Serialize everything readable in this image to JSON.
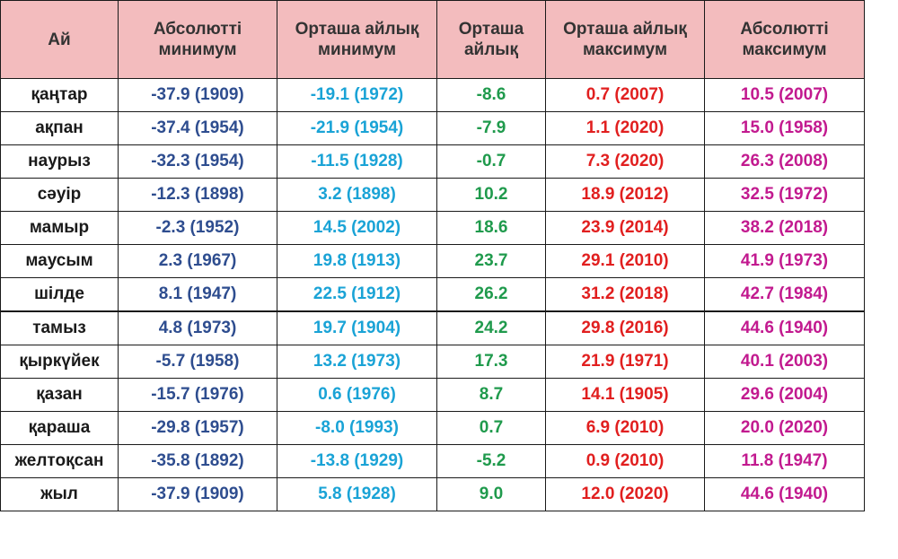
{
  "colors": {
    "header_bg": "#f3bcbe",
    "abs_min": "#2e4d8f",
    "avg_min": "#1aa3d6",
    "avg": "#1f9a4c",
    "avg_max": "#e11f1f",
    "abs_max": "#c21a8f"
  },
  "headers": {
    "month": "Ай",
    "abs_min_1": "Абсолютті",
    "abs_min_2": "минимум",
    "avg_min_1": "Орташа айлық",
    "avg_min_2": "минимум",
    "avg_1": "Орташа",
    "avg_2": "айлық",
    "avg_max_1": "Орташа айлық",
    "avg_max_2": "максимум",
    "abs_max_1": "Абсолютті",
    "abs_max_2": "максимум"
  },
  "rows": [
    {
      "month": "қаңтар",
      "abs_min": "-37.9 (1909)",
      "avg_min": "-19.1 (1972)",
      "avg": "-8.6",
      "avg_max": "0.7 (2007)",
      "abs_max": "10.5 (2007)"
    },
    {
      "month": "ақпан",
      "abs_min": "-37.4 (1954)",
      "avg_min": "-21.9 (1954)",
      "avg": "-7.9",
      "avg_max": "1.1 (2020)",
      "abs_max": "15.0 (1958)"
    },
    {
      "month": "наурыз",
      "abs_min": "-32.3 (1954)",
      "avg_min": "-11.5 (1928)",
      "avg": "-0.7",
      "avg_max": "7.3 (2020)",
      "abs_max": "26.3 (2008)"
    },
    {
      "month": "сәуір",
      "abs_min": "-12.3 (1898)",
      "avg_min": "3.2 (1898)",
      "avg": "10.2",
      "avg_max": "18.9 (2012)",
      "abs_max": "32.5 (1972)"
    },
    {
      "month": "мамыр",
      "abs_min": "-2.3 (1952)",
      "avg_min": "14.5 (2002)",
      "avg": "18.6",
      "avg_max": "23.9 (2014)",
      "abs_max": "38.2 (2018)"
    },
    {
      "month": "маусым",
      "abs_min": "2.3 (1967)",
      "avg_min": "19.8 (1913)",
      "avg": "23.7",
      "avg_max": "29.1 (2010)",
      "abs_max": "41.9 (1973)"
    },
    {
      "month": "шілде",
      "abs_min": "8.1 (1947)",
      "avg_min": "22.5 (1912)",
      "avg": "26.2",
      "avg_max": "31.2 (2018)",
      "abs_max": "42.7 (1984)"
    },
    {
      "month": "тамыз",
      "abs_min": "4.8 (1973)",
      "avg_min": "19.7 (1904)",
      "avg": "24.2",
      "avg_max": "29.8 (2016)",
      "abs_max": "44.6 (1940)"
    },
    {
      "month": "қыркүйек",
      "abs_min": "-5.7 (1958)",
      "avg_min": "13.2 (1973)",
      "avg": "17.3",
      "avg_max": "21.9 (1971)",
      "abs_max": "40.1 (2003)"
    },
    {
      "month": "қазан",
      "abs_min": "-15.7 (1976)",
      "avg_min": "0.6 (1976)",
      "avg": "8.7",
      "avg_max": "14.1 (1905)",
      "abs_max": "29.6 (2004)"
    },
    {
      "month": "қараша",
      "abs_min": "-29.8 (1957)",
      "avg_min": "-8.0 (1993)",
      "avg": "0.7",
      "avg_max": "6.9 (2010)",
      "abs_max": "20.0 (2020)"
    },
    {
      "month": "желтоқсан",
      "abs_min": "-35.8 (1892)",
      "avg_min": "-13.8 (1929)",
      "avg": "-5.2",
      "avg_max": "0.9 (2010)",
      "abs_max": "11.8 (1947)"
    },
    {
      "month": "жыл",
      "abs_min": "-37.9 (1909)",
      "avg_min": "5.8 (1928)",
      "avg": "9.0",
      "avg_max": "12.0 (2020)",
      "abs_max": "44.6 (1940)"
    }
  ]
}
